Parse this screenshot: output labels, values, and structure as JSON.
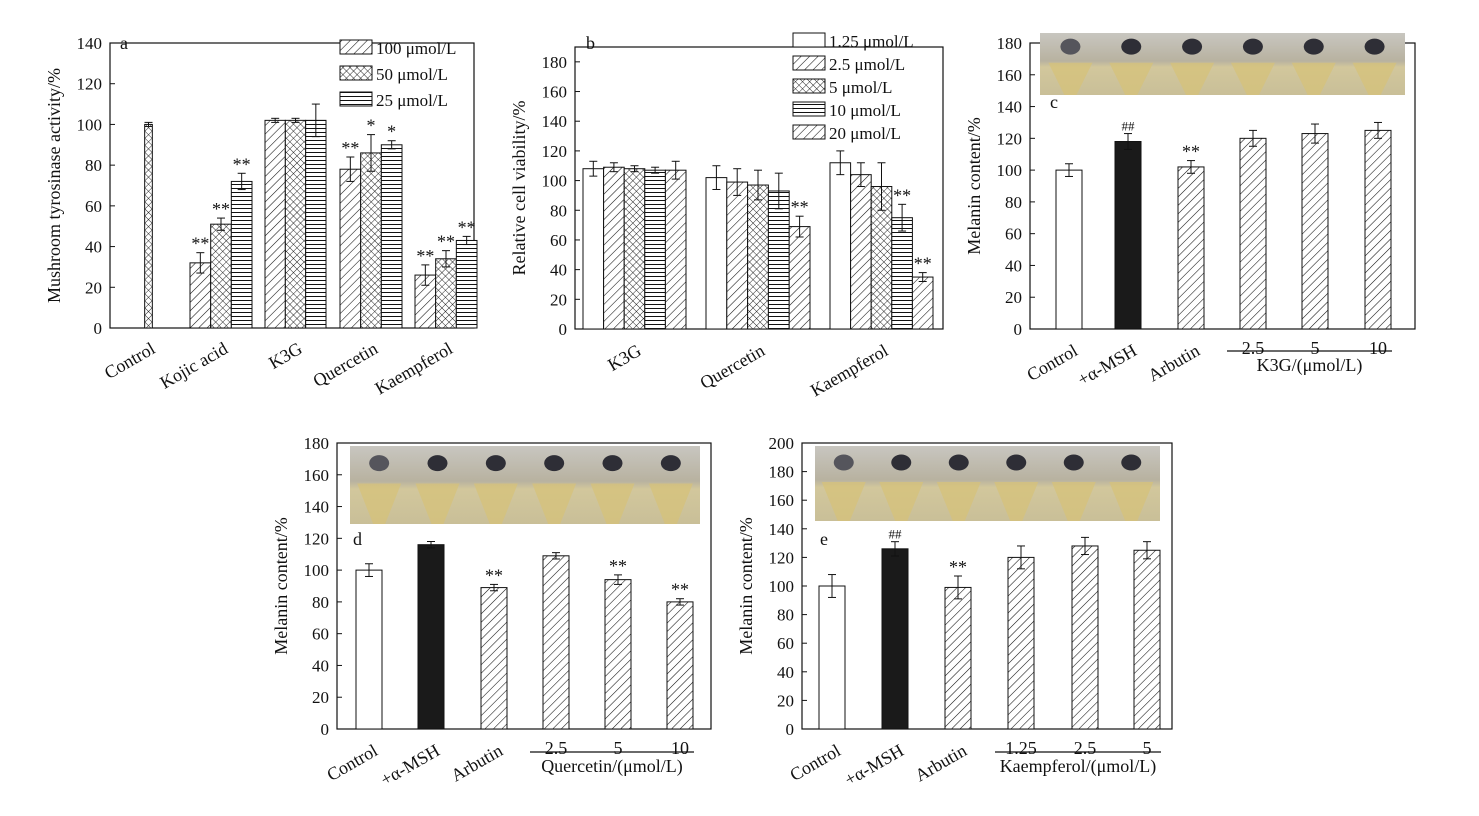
{
  "chart_data": [
    {
      "panel": "a",
      "type": "bar",
      "ylabel": "Mushroom tyrosinase activity/%",
      "ylim": [
        0,
        140
      ],
      "yticks": [
        0,
        20,
        40,
        60,
        80,
        100,
        120,
        140
      ],
      "categories": [
        "Control",
        "Kojic acid",
        "K3G",
        "Quercetin",
        "Kaempferol"
      ],
      "series": [
        {
          "name": "100 μmol/L",
          "pattern": "diag",
          "values": [
            null,
            32,
            102,
            78,
            26
          ],
          "errors": [
            null,
            5,
            1,
            6,
            5
          ],
          "sig": [
            "",
            "**",
            "",
            "**",
            "**"
          ]
        },
        {
          "name": "50 μmol/L",
          "pattern": "cross",
          "values": [
            100,
            51,
            102,
            86,
            34
          ],
          "errors": [
            1,
            3,
            1,
            9,
            4
          ],
          "sig": [
            "",
            "**",
            "",
            "*",
            "**"
          ]
        },
        {
          "name": "25 μmol/L",
          "pattern": "horiz",
          "values": [
            null,
            72,
            102,
            90,
            43
          ],
          "errors": [
            null,
            4,
            8,
            2,
            2
          ],
          "sig": [
            "",
            "**",
            "",
            "*",
            "**"
          ]
        }
      ],
      "control_pattern": "cross",
      "legend": "top-right"
    },
    {
      "panel": "b",
      "type": "bar",
      "ylabel": "Relative cell viability/%",
      "ylim": [
        0,
        190
      ],
      "yticks": [
        0,
        20,
        40,
        60,
        80,
        100,
        120,
        140,
        160,
        180
      ],
      "categories": [
        "K3G",
        "Quercetin",
        "Kaempferol"
      ],
      "series": [
        {
          "name": "1.25 μmol/L",
          "pattern": "white",
          "values": [
            108,
            102,
            112
          ],
          "errors": [
            5,
            8,
            8
          ],
          "sig": [
            "",
            "",
            ""
          ]
        },
        {
          "name": "2.5 μmol/L",
          "pattern": "diag",
          "values": [
            109,
            99,
            104
          ],
          "errors": [
            3,
            9,
            8
          ],
          "sig": [
            "",
            "",
            ""
          ]
        },
        {
          "name": "5 μmol/L",
          "pattern": "cross",
          "values": [
            108,
            97,
            96
          ],
          "errors": [
            2,
            10,
            16
          ],
          "sig": [
            "",
            "",
            ""
          ]
        },
        {
          "name": "10 μmol/L",
          "pattern": "horiz",
          "values": [
            107,
            93,
            75
          ],
          "errors": [
            2,
            12,
            9
          ],
          "sig": [
            "",
            "",
            "**"
          ]
        },
        {
          "name": "20 μmol/L",
          "pattern": "diag",
          "values": [
            107,
            69,
            35
          ],
          "errors": [
            6,
            7,
            3
          ],
          "sig": [
            "",
            "**",
            "**"
          ]
        }
      ],
      "legend": "top-right"
    },
    {
      "panel": "c",
      "type": "bar",
      "ylabel": "Melanin content/%",
      "ylim": [
        0,
        180
      ],
      "yticks": [
        0,
        20,
        40,
        60,
        80,
        100,
        120,
        140,
        160,
        180
      ],
      "categories": [
        "Control",
        "+α-MSH",
        "Arbutin",
        "2.5",
        "5",
        "10"
      ],
      "values": [
        100,
        118,
        102,
        120,
        123,
        125
      ],
      "errors": [
        4,
        5,
        4,
        5,
        6,
        5
      ],
      "patterns": [
        "white",
        "black",
        "diag",
        "diag",
        "diag",
        "diag"
      ],
      "sig": [
        "",
        "##",
        "**",
        "",
        "",
        ""
      ],
      "group_label": "K3G/(μmol/L)"
    },
    {
      "panel": "d",
      "type": "bar",
      "ylabel": "Melanin content/%",
      "ylim": [
        0,
        180
      ],
      "yticks": [
        0,
        20,
        40,
        60,
        80,
        100,
        120,
        140,
        160,
        180
      ],
      "categories": [
        "Control",
        "+α-MSH",
        "Arbutin",
        "2.5",
        "5",
        "10"
      ],
      "values": [
        100,
        116,
        89,
        109,
        94,
        80
      ],
      "errors": [
        4,
        2,
        2,
        2,
        3,
        2
      ],
      "patterns": [
        "white",
        "black",
        "diag",
        "diag",
        "diag",
        "diag"
      ],
      "sig": [
        "",
        "",
        "**",
        "",
        "**",
        "**"
      ],
      "group_label": "Quercetin/(μmol/L)"
    },
    {
      "panel": "e",
      "type": "bar",
      "ylabel": "Melanin content/%",
      "ylim": [
        0,
        200
      ],
      "yticks": [
        0,
        20,
        40,
        60,
        80,
        100,
        120,
        140,
        160,
        180,
        200
      ],
      "categories": [
        "Control",
        "+α-MSH",
        "Arbutin",
        "1.25",
        "2.5",
        "5"
      ],
      "values": [
        100,
        126,
        99,
        120,
        128,
        125
      ],
      "errors": [
        8,
        5,
        8,
        8,
        6,
        6
      ],
      "patterns": [
        "white",
        "black",
        "diag",
        "diag",
        "diag",
        "diag"
      ],
      "sig": [
        "",
        "##",
        "**",
        "",
        "",
        ""
      ],
      "group_label": "Kaempferol/(μmol/L)"
    }
  ]
}
